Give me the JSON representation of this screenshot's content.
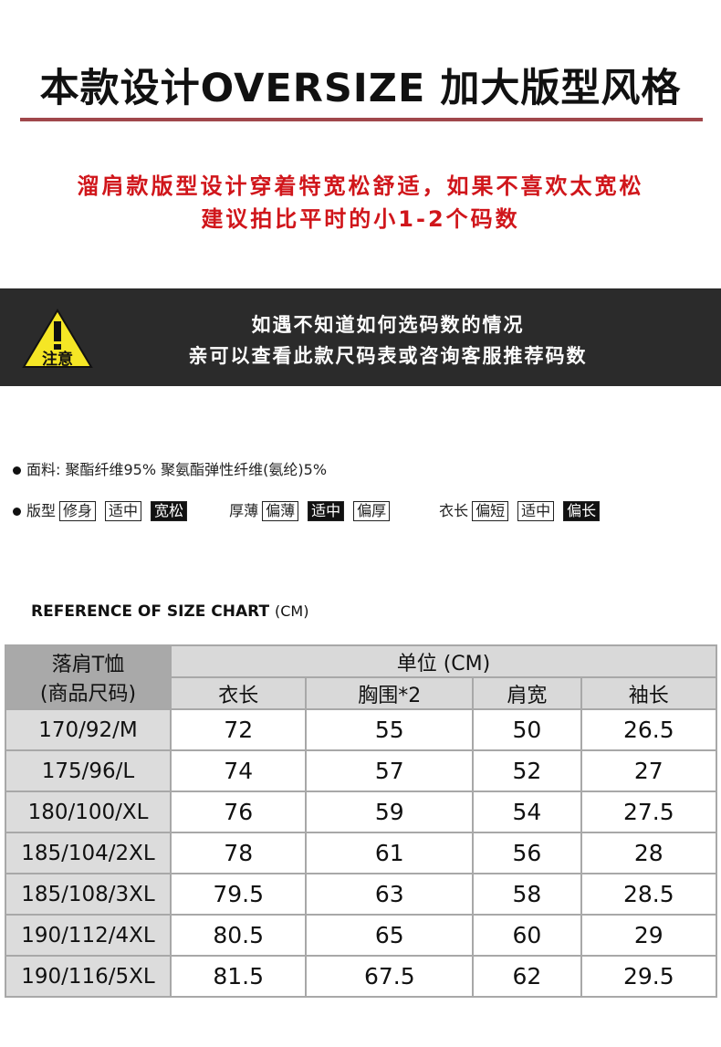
{
  "header": {
    "title": "本款设计OVERSIZE 加大版型风格",
    "note_line1": "溜肩款版型设计穿着特宽松舒适，如果不喜欢太宽松",
    "note_line2": "建议拍比平时的小1-2个码数"
  },
  "notice": {
    "icon_label": "注意",
    "line1": "如遇不知道如何选码数的情况",
    "line2": "亲可以查看此款尺码表或咨询客服推荐码数"
  },
  "fabric": {
    "label": "面料:",
    "value": "聚酯纤维95% 聚氨酯弹性纤维(氨纶)5%"
  },
  "attributes": [
    {
      "label": "版型",
      "options": [
        "修身",
        "适中",
        "宽松"
      ],
      "selected": 2
    },
    {
      "label": "厚薄",
      "options": [
        "偏薄",
        "适中",
        "偏厚"
      ],
      "selected": 1
    },
    {
      "label": "衣长",
      "options": [
        "偏短",
        "适中",
        "偏长"
      ],
      "selected": 2
    }
  ],
  "size_chart": {
    "title": "REFERENCE OF SIZE CHART",
    "unit_suffix": "(CM)",
    "corner_line1": "落肩T恤",
    "corner_line2": "(商品尺码)",
    "unit_header": "单位 (CM)",
    "columns": [
      "衣长",
      "胸围*2",
      "肩宽",
      "袖长"
    ],
    "rows": [
      {
        "size": "170/92/M",
        "values": [
          "72",
          "55",
          "50",
          "26.5"
        ]
      },
      {
        "size": "175/96/L",
        "values": [
          "74",
          "57",
          "52",
          "27"
        ]
      },
      {
        "size": "180/100/XL",
        "values": [
          "76",
          "59",
          "54",
          "27.5"
        ]
      },
      {
        "size": "185/104/2XL",
        "values": [
          "78",
          "61",
          "56",
          "28"
        ]
      },
      {
        "size": "185/108/3XL",
        "values": [
          "79.5",
          "63",
          "58",
          "28.5"
        ]
      },
      {
        "size": "190/112/4XL",
        "values": [
          "80.5",
          "65",
          "60",
          "29"
        ]
      },
      {
        "size": "190/116/5XL",
        "values": [
          "81.5",
          "67.5",
          "62",
          "29.5"
        ]
      }
    ]
  }
}
